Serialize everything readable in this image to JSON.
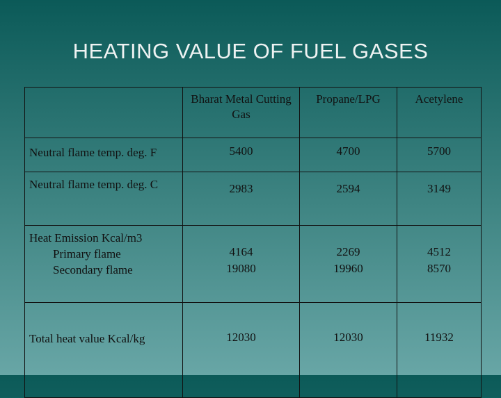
{
  "header": {
    "title": "HEATING VALUE OF FUEL GASES"
  },
  "table": {
    "columns": [
      "Bharat Metal Cutting Gas",
      "Propane/LPG",
      "Acetylene"
    ],
    "rows": [
      {
        "label": [
          "Neutral flame temp. deg. F"
        ],
        "values": [
          [
            5400
          ],
          [
            4700
          ],
          [
            5700
          ]
        ]
      },
      {
        "label": [
          "Neutral flame temp. deg. C"
        ],
        "values": [
          [
            2983
          ],
          [
            2594
          ],
          [
            3149
          ]
        ]
      },
      {
        "label": [
          "Heat Emission Kcal/m3",
          "Primary flame",
          "Secondary flame"
        ],
        "values": [
          [
            4164,
            19080
          ],
          [
            2269,
            19960
          ],
          [
            4512,
            8570
          ]
        ]
      },
      {
        "label": [
          "Total heat value Kcal/kg"
        ],
        "values": [
          [
            12030
          ],
          [
            12030
          ],
          [
            11932
          ]
        ]
      }
    ]
  }
}
